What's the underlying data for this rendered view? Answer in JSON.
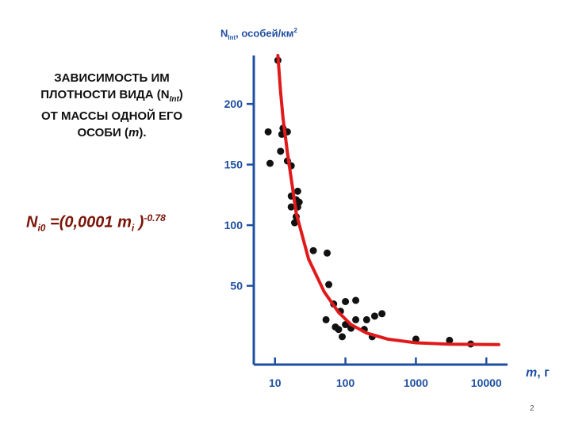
{
  "slide": {
    "title_line1": "ЗАВИСИМОСТЬ ИМ",
    "title_line2_pre": "ПЛОТНОСТИ ВИДА (N",
    "title_line2_sub": "Int",
    "title_line2_post": ")",
    "title_line3": "ОТ МАССЫ ОДНОЙ ЕГО",
    "title_line4_pre": "ОСОБИ (",
    "title_line4_var": "m",
    "title_line4_post": ").",
    "formula_n": "N",
    "formula_n_sub": "i0",
    "formula_mid": " =(0,0001 m",
    "formula_m_sub": "i",
    "formula_close": " )",
    "formula_exp": "-0.78",
    "page_number": "2"
  },
  "chart_data": {
    "type": "scatter",
    "ylabel_main": "N",
    "ylabel_sub": "Int",
    "ylabel_rest": ", особей/км",
    "ylabel_sup": "2",
    "xlabel_var": "m",
    "xlabel_unit": ", г",
    "x_scale": "log",
    "xlim": [
      5,
      20000
    ],
    "ylim": [
      -15,
      240
    ],
    "xticks": [
      10,
      100,
      1000,
      10000
    ],
    "xtick_labels": [
      "10",
      "100",
      "1000",
      "10000"
    ],
    "yticks": [
      50,
      100,
      150,
      200
    ],
    "ytick_labels": [
      "50",
      "100",
      "150",
      "200"
    ],
    "grid": false,
    "axis_color": "#1f4fa0",
    "point_color": "#111111",
    "curve_color": "#e01a1a",
    "points": [
      {
        "x": 11,
        "y": 236
      },
      {
        "x": 8,
        "y": 177
      },
      {
        "x": 13,
        "y": 180
      },
      {
        "x": 12.5,
        "y": 175
      },
      {
        "x": 15,
        "y": 177
      },
      {
        "x": 12,
        "y": 161
      },
      {
        "x": 8.5,
        "y": 151
      },
      {
        "x": 15,
        "y": 153
      },
      {
        "x": 17,
        "y": 149
      },
      {
        "x": 21,
        "y": 128
      },
      {
        "x": 17,
        "y": 124
      },
      {
        "x": 20,
        "y": 121
      },
      {
        "x": 22,
        "y": 119
      },
      {
        "x": 17,
        "y": 115
      },
      {
        "x": 21,
        "y": 115
      },
      {
        "x": 20,
        "y": 107
      },
      {
        "x": 19,
        "y": 102
      },
      {
        "x": 35,
        "y": 79
      },
      {
        "x": 55,
        "y": 77
      },
      {
        "x": 58,
        "y": 51
      },
      {
        "x": 68,
        "y": 35
      },
      {
        "x": 100,
        "y": 37
      },
      {
        "x": 140,
        "y": 38
      },
      {
        "x": 85,
        "y": 29
      },
      {
        "x": 53,
        "y": 22
      },
      {
        "x": 72,
        "y": 16
      },
      {
        "x": 100,
        "y": 18
      },
      {
        "x": 140,
        "y": 22
      },
      {
        "x": 200,
        "y": 22
      },
      {
        "x": 80,
        "y": 14
      },
      {
        "x": 120,
        "y": 15
      },
      {
        "x": 185,
        "y": 14
      },
      {
        "x": 330,
        "y": 27
      },
      {
        "x": 260,
        "y": 25
      },
      {
        "x": 240,
        "y": 8
      },
      {
        "x": 90,
        "y": 8
      },
      {
        "x": 1000,
        "y": 6
      },
      {
        "x": 3000,
        "y": 5
      },
      {
        "x": 6000,
        "y": 2
      }
    ],
    "fit_curve": [
      {
        "x": 11,
        "y": 240
      },
      {
        "x": 12,
        "y": 210
      },
      {
        "x": 13,
        "y": 188
      },
      {
        "x": 15,
        "y": 160
      },
      {
        "x": 20,
        "y": 110
      },
      {
        "x": 30,
        "y": 72
      },
      {
        "x": 50,
        "y": 45
      },
      {
        "x": 80,
        "y": 28
      },
      {
        "x": 120,
        "y": 18
      },
      {
        "x": 200,
        "y": 11
      },
      {
        "x": 400,
        "y": 6
      },
      {
        "x": 1000,
        "y": 3
      },
      {
        "x": 3000,
        "y": 1.8
      },
      {
        "x": 15000,
        "y": 1.5
      }
    ]
  }
}
